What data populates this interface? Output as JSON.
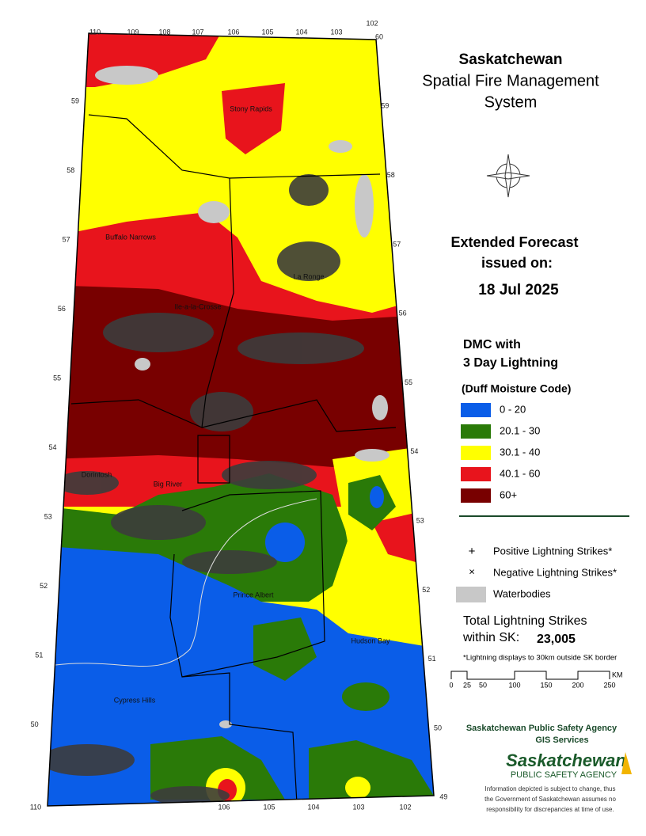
{
  "title": [
    "Saskatchewan",
    "Spatial Fire Management",
    "System"
  ],
  "forecast": {
    "heading": [
      "Extended Forecast",
      "issued on:"
    ],
    "date": "18 Jul 2025"
  },
  "legend": {
    "heading": [
      "DMC with",
      "3 Day Lightning"
    ],
    "subheading": "(Duff Moisture Code)",
    "classes": [
      {
        "label": "0 - 20",
        "color": "#0a5de8"
      },
      {
        "label": "20.1 - 30",
        "color": "#2a7a08"
      },
      {
        "label": "30.1 - 40",
        "color": "#ffff00"
      },
      {
        "label": "40.1 - 60",
        "color": "#e8141c"
      },
      {
        "label": "60+",
        "color": "#780000"
      }
    ],
    "symbols": [
      "Positive Lightning Strikes*",
      "Negative Lightning Strikes*",
      "Waterbodies"
    ]
  },
  "total": {
    "label": [
      "Total Lightning Strikes",
      "within SK:"
    ],
    "value": "23,005"
  },
  "footnote": "*Lightning displays to 30km outside SK border",
  "scale": {
    "ticks": [
      0,
      25,
      50,
      100,
      150,
      200,
      250
    ],
    "unit": "KM"
  },
  "agency": {
    "name": "Saskatchewan Public Safety Agency",
    "unit": "GIS  Services",
    "logo": [
      "Saskatchewan",
      "PUBLIC SAFETY AGENCY"
    ],
    "disclaimer": [
      "Information depicted is subject to change, thus",
      "the Government of Saskatchewan assumes no",
      "responsibility for discrepancies at time of use."
    ]
  },
  "map": {
    "lon_top": [
      110,
      109,
      108,
      107,
      106,
      105,
      104,
      103,
      102
    ],
    "lon_bottom": [
      110,
      106,
      105,
      104,
      103,
      102
    ],
    "lat_left": [
      59,
      58,
      57,
      56,
      55,
      54,
      53,
      52,
      51,
      50
    ],
    "lat_right": [
      60,
      59,
      58,
      57,
      56,
      55,
      54,
      53,
      52,
      51,
      50,
      49
    ],
    "places": [
      "Stony Rapids",
      "Buffalo Narrows",
      "Ile-a-la-Crosse",
      "La Ronge",
      "Dorintosh",
      "Big River",
      "Prince Albert",
      "Hudson Bay",
      "Cypress Hills"
    ]
  }
}
